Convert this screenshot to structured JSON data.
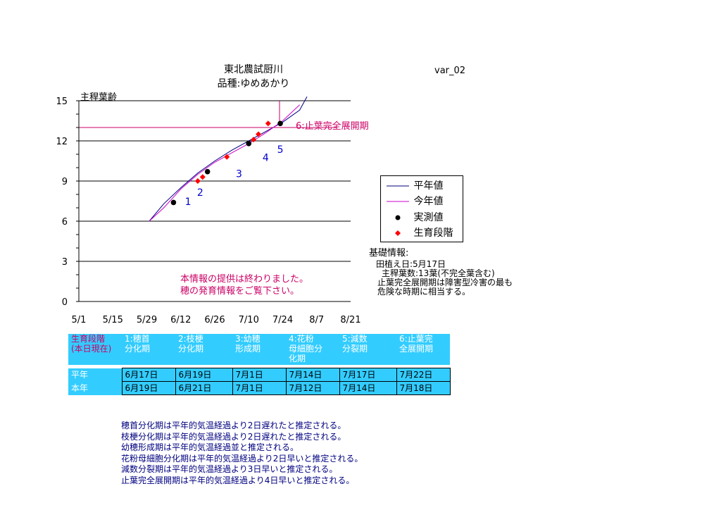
{
  "chart_data": {
    "type": "line",
    "title": "東北農試厨川",
    "subtitle": "品種:ゆめあかり",
    "version_label": "var_02",
    "ylabel": "主稈葉齢",
    "ylim": [
      0,
      15
    ],
    "yticks": [
      "0",
      "3",
      "6",
      "9",
      "12",
      "15"
    ],
    "xlim": [
      "5/1",
      "8/21"
    ],
    "xticks": [
      "5/1",
      "5/15",
      "5/29",
      "6/12",
      "6/26",
      "7/10",
      "7/24",
      "8/7",
      "8/21"
    ],
    "grid": true,
    "series": [
      {
        "name": "平年値",
        "color": "#000080",
        "x": [
          "5/30",
          "6/5",
          "6/12",
          "6/19",
          "6/26",
          "7/3",
          "7/10",
          "7/17",
          "7/24",
          "7/31",
          "8/3"
        ],
        "y": [
          6.0,
          7.3,
          8.5,
          9.6,
          10.5,
          11.3,
          12.0,
          12.7,
          13.4,
          14.3,
          15.3
        ]
      },
      {
        "name": "今年値",
        "color": "#cc00cc",
        "x": [
          "5/30",
          "6/5",
          "6/12",
          "6/19",
          "6/26",
          "7/3",
          "7/10",
          "7/17",
          "7/24",
          "7/31"
        ],
        "y": [
          6.0,
          7.0,
          8.4,
          9.5,
          10.4,
          11.1,
          11.8,
          12.6,
          13.5,
          14.7
        ]
      },
      {
        "name": "実測値",
        "color": "#000000",
        "marker": "circle",
        "x": [
          "6/9",
          "6/23",
          "7/10",
          "7/23"
        ],
        "y": [
          7.4,
          9.7,
          11.8,
          13.3
        ]
      },
      {
        "name": "生育段階",
        "color": "#ff0000",
        "marker": "diamond",
        "x": [
          "6/19",
          "6/21",
          "7/1",
          "7/12",
          "7/14",
          "7/18"
        ],
        "y": [
          9.0,
          9.3,
          10.8,
          12.1,
          12.5,
          13.3
        ]
      }
    ],
    "stage_labels": [
      "1",
      "2",
      "3",
      "4",
      "5"
    ],
    "stage_label_positions": [
      {
        "x": "6/15",
        "y": 7.2
      },
      {
        "x": "6/20",
        "y": 7.9
      },
      {
        "x": "7/6",
        "y": 9.3
      },
      {
        "x": "7/17",
        "y": 10.5
      },
      {
        "x": "7/23",
        "y": 11.1
      }
    ],
    "reference_line": {
      "y": 13.0,
      "label": "6:止葉完全展開期",
      "color": "#cc0066"
    }
  },
  "legend": {
    "items": [
      {
        "label": "平年値",
        "type": "line",
        "color": "#000080"
      },
      {
        "label": "今年値",
        "type": "line",
        "color": "#cc00cc"
      },
      {
        "label": "実測値",
        "type": "circle",
        "color": "#000000"
      },
      {
        "label": "生育段階",
        "type": "diamond",
        "color": "#ff0000"
      }
    ]
  },
  "notice": {
    "line1": "本情報の提供は終わりました。",
    "line2": "穂の発育情報をご覧下さい。"
  },
  "basic_info": {
    "heading": "基礎情報:",
    "planting": "田植え日:5月17日",
    "leaves": "主稈葉数:13葉(不完全葉含む)",
    "note1": "止葉完全展開期は障害型冷害の最も",
    "note2": "危険な時期に相当する。"
  },
  "table": {
    "header_label1": "生育段階",
    "header_label2": "(本日現在)",
    "stages": [
      {
        "l1": "1:穂首",
        "l2": "分化期"
      },
      {
        "l1": "2:枝梗",
        "l2": "分化期"
      },
      {
        "l1": "3:幼穂",
        "l2": "形成期"
      },
      {
        "l1": "4:花粉",
        "l2": "母細胞分",
        "l3": "化期"
      },
      {
        "l1": "5:減数",
        "l2": "分裂期"
      },
      {
        "l1": "6:止葉完",
        "l2": "全展開期"
      }
    ],
    "rows": [
      {
        "label": "平年",
        "values": [
          "6月17日",
          "6月19日",
          "7月1日",
          "7月14日",
          "7月17日",
          "7月22日"
        ]
      },
      {
        "label": "本年",
        "values": [
          "6月19日",
          "6月21日",
          "7月1日",
          "7月12日",
          "7月14日",
          "7月18日"
        ]
      }
    ]
  },
  "notes": [
    "穂首分化期は平年的気温経過より2日遅れたと推定される。",
    "枝梗分化期は平年的気温経過より2日遅れたと推定される。",
    "幼穂形成期は平年的気温経過並と推定される。",
    "花粉母細胞分化期は平年的気温経過より2日早いと推定される。",
    "減数分裂期は平年的気温経過より3日早いと推定される。",
    "止葉完全展開期は平年的気温経過より4日早いと推定される。"
  ]
}
